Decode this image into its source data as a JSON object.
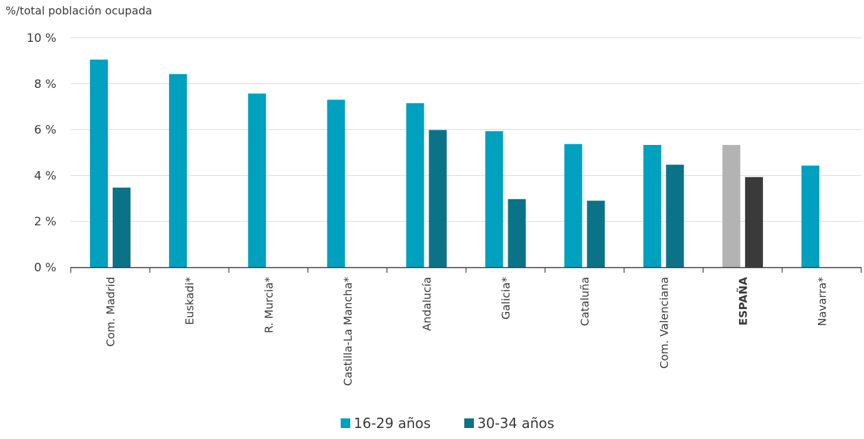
{
  "chart_data": {
    "type": "bar",
    "y_unit_label": "%/total población ocupada",
    "categories": [
      "Com. Madrid",
      "Euskadi*",
      "R. Murcia*",
      "Castilla-La Mancha*",
      "Andalucía",
      "Galicia*",
      "Cataluña",
      "Com. Valenciana",
      "ESPAÑA",
      "Navarra*"
    ],
    "highlight_category": "ESPAÑA",
    "series": [
      {
        "name": "16-29 años",
        "color": "#00a0bf",
        "highlight_color": "#b3b3b3",
        "values": [
          9.05,
          8.42,
          7.57,
          7.3,
          7.15,
          5.93,
          5.37,
          5.33,
          5.33,
          4.43
        ]
      },
      {
        "name": "30-34 años",
        "color": "#0b7387",
        "highlight_color": "#3a3a3a",
        "values": [
          3.47,
          null,
          null,
          null,
          5.98,
          2.97,
          2.9,
          4.47,
          3.93,
          null
        ]
      }
    ],
    "ylim": [
      0,
      10
    ],
    "yticks": [
      0,
      2,
      4,
      6,
      8,
      10
    ],
    "ytick_labels": [
      "0 %",
      "2 %",
      "4 %",
      "6 %",
      "8 %",
      "10 %"
    ],
    "grid": true,
    "legend_position": "bottom"
  }
}
